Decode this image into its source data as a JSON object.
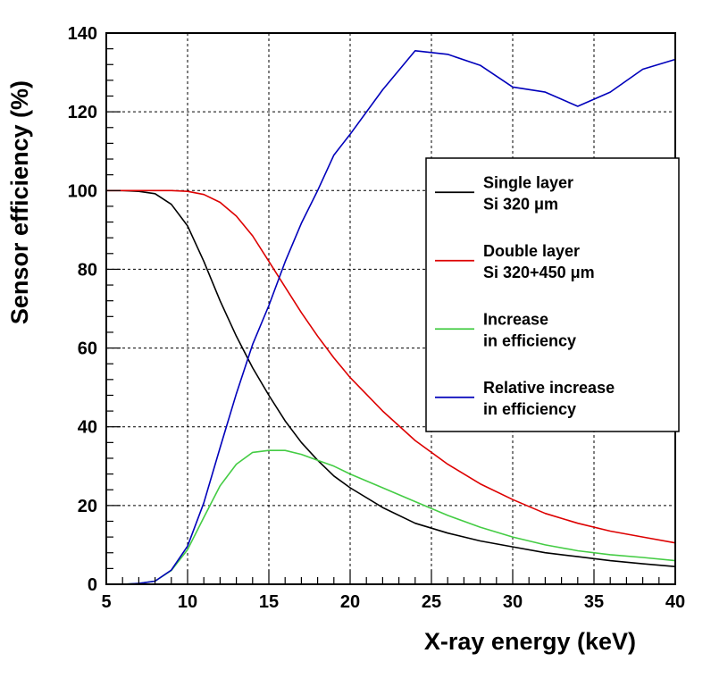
{
  "chart_data": {
    "type": "line",
    "title": "",
    "xlabel": "X-ray energy (keV)",
    "ylabel": "Sensor efficiency (%)",
    "xlim": [
      5,
      40
    ],
    "ylim": [
      0,
      140
    ],
    "xticks": [
      5,
      10,
      15,
      20,
      25,
      30,
      35,
      40
    ],
    "yticks": [
      0,
      20,
      40,
      60,
      80,
      100,
      120,
      140
    ],
    "grid": true,
    "legend_position": "right",
    "series": [
      {
        "name": "Single layer Si 320 μm",
        "legend_lines": [
          "Single layer",
          "Si 320 μm"
        ],
        "color": "#000000",
        "x": [
          5,
          6,
          7,
          8,
          9,
          10,
          11,
          12,
          13,
          14,
          15,
          16,
          17,
          18,
          19,
          20,
          22,
          24,
          26,
          28,
          30,
          32,
          34,
          36,
          38,
          40
        ],
        "y": [
          100,
          100,
          99.8,
          99.2,
          96.5,
          91,
          82,
          72,
          63,
          55,
          48,
          41.5,
          36,
          31.5,
          27.5,
          24.5,
          19.5,
          15.5,
          13,
          11,
          9.5,
          8,
          7,
          6,
          5.2,
          4.5
        ]
      },
      {
        "name": "Double layer Si 320+450 μm",
        "legend_lines": [
          "Double layer",
          "Si 320+450  μm"
        ],
        "color": "#dd0000",
        "x": [
          5,
          6,
          7,
          8,
          9,
          10,
          11,
          12,
          13,
          14,
          15,
          16,
          17,
          18,
          19,
          20,
          22,
          24,
          26,
          28,
          30,
          32,
          34,
          36,
          38,
          40
        ],
        "y": [
          100,
          100,
          100,
          100,
          100,
          99.8,
          99,
          97,
          93.5,
          88.5,
          82,
          75.5,
          69,
          63,
          57.5,
          52.5,
          44,
          36.5,
          30.5,
          25.5,
          21.5,
          18,
          15.5,
          13.5,
          12,
          10.5
        ]
      },
      {
        "name": "Increase in efficiency",
        "legend_lines": [
          "Increase",
          "in efficiency"
        ],
        "color": "#44cc44",
        "x": [
          5,
          6,
          7,
          8,
          9,
          10,
          11,
          12,
          13,
          14,
          15,
          16,
          17,
          18,
          19,
          20,
          22,
          24,
          26,
          28,
          30,
          32,
          34,
          36,
          38,
          40
        ],
        "y": [
          0,
          0,
          0.2,
          0.8,
          3.5,
          8.8,
          17,
          25,
          30.5,
          33.5,
          34,
          34,
          33,
          31.5,
          30,
          28,
          24.5,
          21,
          17.5,
          14.5,
          12,
          10,
          8.5,
          7.5,
          6.8,
          6
        ]
      },
      {
        "name": "Relative increase in efficiency",
        "legend_lines": [
          "Relative increase",
          "in efficiency"
        ],
        "color": "#0000bb",
        "x": [
          5,
          6,
          7,
          8,
          9,
          10,
          11,
          12,
          13,
          14,
          15,
          16,
          17,
          18,
          19,
          20,
          22,
          24,
          26,
          28,
          30,
          32,
          34,
          36,
          38,
          40
        ],
        "y": [
          0,
          0,
          0.2,
          0.8,
          3.6,
          9.7,
          20.7,
          34.7,
          48.4,
          60.9,
          70.8,
          81.9,
          91.7,
          100,
          109,
          114.3,
          125.6,
          135.5,
          134.6,
          131.8,
          126.3,
          125,
          121.4,
          125,
          130.8,
          133.3
        ]
      }
    ]
  }
}
